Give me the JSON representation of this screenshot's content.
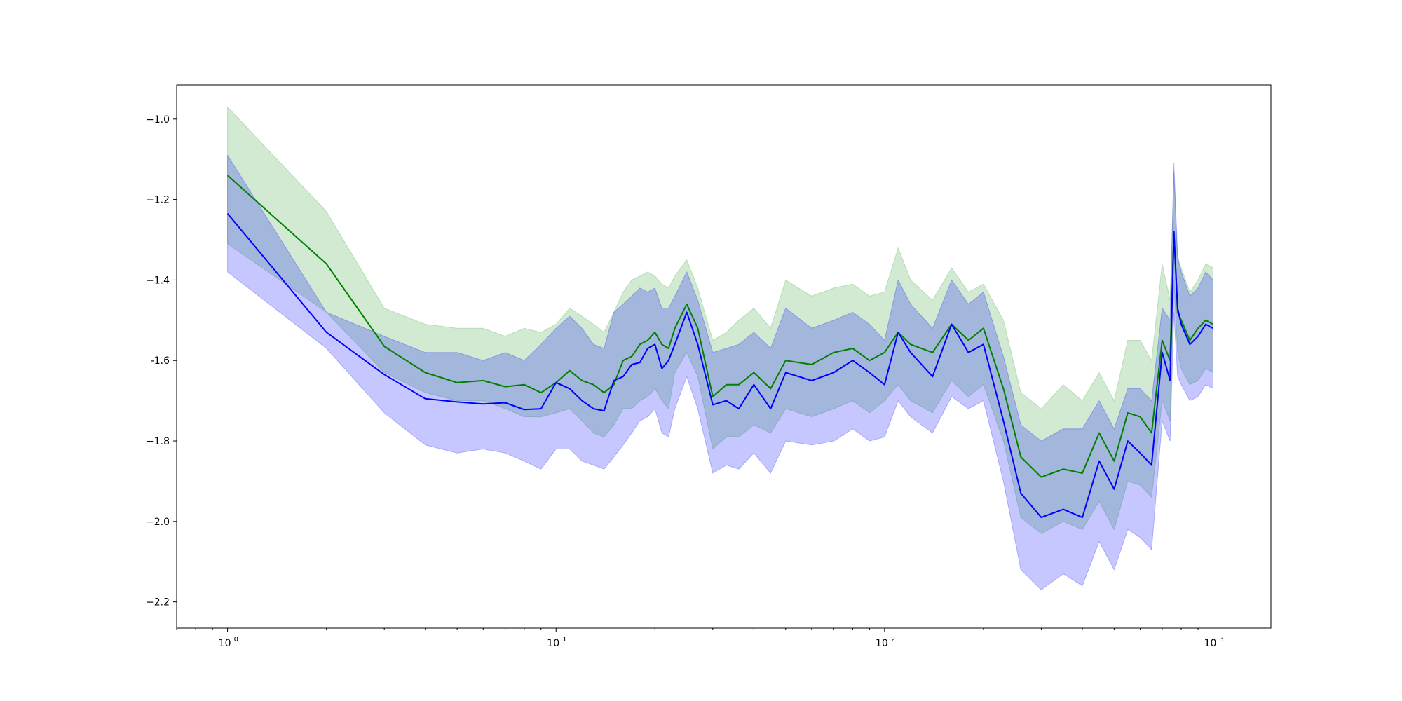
{
  "chart_data": {
    "type": "line",
    "xscale": "log",
    "xlim": [
      0.7,
      1500
    ],
    "ylim": [
      -2.265,
      -0.915
    ],
    "grid": false,
    "legend": "none",
    "y_ticks": [
      -1.0,
      -1.2,
      -1.4,
      -1.6,
      -1.8,
      -2.0,
      -2.2
    ],
    "y_tick_labels": [
      "−1.0",
      "−1.2",
      "−1.4",
      "-1.6",
      "−1.8",
      "−2.0",
      "−2.2"
    ],
    "x_ticks": [
      1,
      10,
      100,
      1000
    ],
    "x_tick_labels": [
      {
        "base": "10",
        "exp": "0"
      },
      {
        "base": "10",
        "exp": "1"
      },
      {
        "base": "10",
        "exp": "2"
      },
      {
        "base": "10",
        "exp": "3"
      }
    ],
    "series": [
      {
        "color": "#008000",
        "band_color": "#2ca02c",
        "x": [
          1,
          2,
          3,
          4,
          5,
          6,
          7,
          8,
          9,
          10,
          11,
          12,
          13,
          14,
          15,
          16,
          17,
          18,
          19,
          20,
          21,
          22,
          23,
          25,
          27,
          30,
          33,
          36,
          40,
          45,
          50,
          60,
          70,
          80,
          90,
          100,
          110,
          120,
          140,
          160,
          180,
          200,
          230,
          260,
          300,
          350,
          400,
          450,
          500,
          550,
          600,
          650,
          700,
          740,
          760,
          780,
          800,
          850,
          900,
          950,
          1000
        ],
        "y": [
          -1.14,
          -1.36,
          -1.565,
          -1.63,
          -1.655,
          -1.65,
          -1.665,
          -1.66,
          -1.68,
          -1.655,
          -1.625,
          -1.65,
          -1.66,
          -1.68,
          -1.66,
          -1.6,
          -1.59,
          -1.56,
          -1.55,
          -1.53,
          -1.56,
          -1.57,
          -1.52,
          -1.46,
          -1.52,
          -1.69,
          -1.66,
          -1.66,
          -1.63,
          -1.67,
          -1.6,
          -1.61,
          -1.58,
          -1.57,
          -1.6,
          -1.58,
          -1.53,
          -1.56,
          -1.58,
          -1.51,
          -1.55,
          -1.52,
          -1.67,
          -1.84,
          -1.89,
          -1.87,
          -1.88,
          -1.78,
          -1.85,
          -1.73,
          -1.74,
          -1.78,
          -1.55,
          -1.6,
          -1.28,
          -1.48,
          -1.5,
          -1.55,
          -1.52,
          -1.5,
          -1.51
        ],
        "upper": [
          -0.97,
          -1.23,
          -1.47,
          -1.51,
          -1.52,
          -1.52,
          -1.54,
          -1.52,
          -1.53,
          -1.51,
          -1.47,
          -1.49,
          -1.51,
          -1.53,
          -1.48,
          -1.43,
          -1.4,
          -1.39,
          -1.38,
          -1.39,
          -1.41,
          -1.42,
          -1.39,
          -1.35,
          -1.42,
          -1.55,
          -1.53,
          -1.5,
          -1.47,
          -1.52,
          -1.4,
          -1.44,
          -1.42,
          -1.41,
          -1.44,
          -1.43,
          -1.32,
          -1.4,
          -1.45,
          -1.37,
          -1.43,
          -1.41,
          -1.5,
          -1.68,
          -1.72,
          -1.66,
          -1.7,
          -1.63,
          -1.7,
          -1.55,
          -1.55,
          -1.6,
          -1.36,
          -1.45,
          -1.13,
          -1.35,
          -1.37,
          -1.43,
          -1.4,
          -1.36,
          -1.37
        ],
        "lower": [
          -1.31,
          -1.48,
          -1.63,
          -1.68,
          -1.7,
          -1.7,
          -1.72,
          -1.74,
          -1.74,
          -1.73,
          -1.72,
          -1.75,
          -1.78,
          -1.79,
          -1.76,
          -1.72,
          -1.72,
          -1.7,
          -1.69,
          -1.67,
          -1.7,
          -1.72,
          -1.63,
          -1.58,
          -1.64,
          -1.82,
          -1.79,
          -1.79,
          -1.76,
          -1.78,
          -1.72,
          -1.74,
          -1.72,
          -1.7,
          -1.73,
          -1.7,
          -1.66,
          -1.7,
          -1.73,
          -1.65,
          -1.69,
          -1.66,
          -1.8,
          -1.99,
          -2.03,
          -2.0,
          -2.02,
          -1.95,
          -2.02,
          -1.9,
          -1.91,
          -1.94,
          -1.7,
          -1.75,
          -1.4,
          -1.58,
          -1.62,
          -1.66,
          -1.65,
          -1.62,
          -1.63
        ]
      },
      {
        "color": "#0000ff",
        "band_color": "#0000ff",
        "x": [
          1,
          2,
          3,
          4,
          5,
          6,
          7,
          8,
          9,
          10,
          11,
          12,
          13,
          14,
          15,
          16,
          17,
          18,
          19,
          20,
          21,
          22,
          23,
          25,
          27,
          30,
          33,
          36,
          40,
          45,
          50,
          60,
          70,
          80,
          90,
          100,
          110,
          120,
          140,
          160,
          180,
          200,
          230,
          260,
          300,
          350,
          400,
          450,
          500,
          550,
          600,
          650,
          700,
          740,
          760,
          780,
          800,
          850,
          900,
          950,
          1000
        ],
        "y": [
          -1.235,
          -1.53,
          -1.635,
          -1.695,
          -1.703,
          -1.708,
          -1.705,
          -1.722,
          -1.72,
          -1.655,
          -1.67,
          -1.7,
          -1.72,
          -1.725,
          -1.65,
          -1.64,
          -1.61,
          -1.605,
          -1.57,
          -1.56,
          -1.62,
          -1.6,
          -1.56,
          -1.48,
          -1.56,
          -1.71,
          -1.7,
          -1.72,
          -1.66,
          -1.72,
          -1.63,
          -1.65,
          -1.63,
          -1.6,
          -1.63,
          -1.66,
          -1.53,
          -1.58,
          -1.64,
          -1.51,
          -1.58,
          -1.56,
          -1.75,
          -1.93,
          -1.99,
          -1.97,
          -1.99,
          -1.85,
          -1.92,
          -1.8,
          -1.83,
          -1.86,
          -1.58,
          -1.65,
          -1.28,
          -1.47,
          -1.51,
          -1.56,
          -1.54,
          -1.51,
          -1.52
        ],
        "upper": [
          -1.09,
          -1.48,
          -1.54,
          -1.58,
          -1.58,
          -1.6,
          -1.58,
          -1.6,
          -1.56,
          -1.52,
          -1.49,
          -1.52,
          -1.56,
          -1.57,
          -1.48,
          -1.46,
          -1.44,
          -1.42,
          -1.43,
          -1.42,
          -1.47,
          -1.47,
          -1.44,
          -1.38,
          -1.45,
          -1.58,
          -1.57,
          -1.56,
          -1.53,
          -1.57,
          -1.47,
          -1.52,
          -1.5,
          -1.48,
          -1.51,
          -1.55,
          -1.4,
          -1.46,
          -1.52,
          -1.4,
          -1.46,
          -1.43,
          -1.59,
          -1.76,
          -1.8,
          -1.77,
          -1.77,
          -1.7,
          -1.77,
          -1.67,
          -1.67,
          -1.7,
          -1.47,
          -1.5,
          -1.11,
          -1.34,
          -1.38,
          -1.44,
          -1.42,
          -1.38,
          -1.4
        ],
        "lower": [
          -1.38,
          -1.57,
          -1.73,
          -1.81,
          -1.83,
          -1.82,
          -1.83,
          -1.85,
          -1.87,
          -1.82,
          -1.82,
          -1.85,
          -1.86,
          -1.87,
          -1.84,
          -1.81,
          -1.78,
          -1.75,
          -1.74,
          -1.72,
          -1.78,
          -1.79,
          -1.72,
          -1.64,
          -1.72,
          -1.88,
          -1.86,
          -1.87,
          -1.83,
          -1.88,
          -1.8,
          -1.81,
          -1.8,
          -1.77,
          -1.8,
          -1.79,
          -1.7,
          -1.74,
          -1.78,
          -1.69,
          -1.72,
          -1.7,
          -1.9,
          -2.12,
          -2.17,
          -2.13,
          -2.16,
          -2.05,
          -2.12,
          -2.02,
          -2.04,
          -2.07,
          -1.75,
          -1.8,
          -1.48,
          -1.64,
          -1.66,
          -1.7,
          -1.69,
          -1.66,
          -1.67
        ]
      }
    ]
  }
}
